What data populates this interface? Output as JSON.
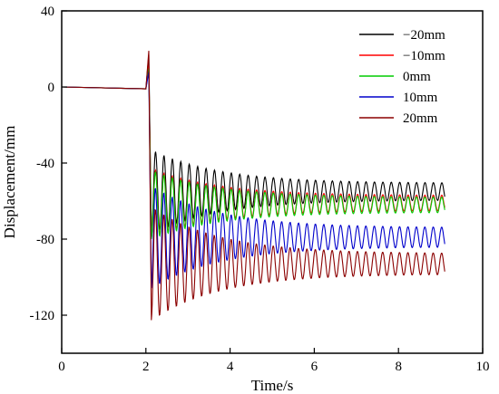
{
  "chart_data": {
    "type": "line",
    "title": "",
    "xlabel": "Time/s",
    "ylabel": "Displacement/mm",
    "xlim": [
      0,
      10
    ],
    "ylim": [
      -140,
      40
    ],
    "xticks": [
      0,
      2,
      4,
      6,
      8,
      10
    ],
    "yticks": [
      40,
      0,
      -40,
      -80,
      -120
    ],
    "grid": false,
    "legend_position": "top-right",
    "series": [
      {
        "name": "−20mm",
        "color": "#000000",
        "final": -55,
        "first_peak": 17,
        "first_trough": -75,
        "period": 0.2,
        "phase": 0.0
      },
      {
        "name": "−10mm",
        "color": "#ff0000",
        "final": -61,
        "first_peak": 12,
        "first_trough": -77,
        "period": 0.2,
        "phase": 0.02
      },
      {
        "name": "0mm",
        "color": "#00cc00",
        "final": -62,
        "first_peak": 10,
        "first_trough": -78,
        "period": 0.2,
        "phase": 0.04
      },
      {
        "name": "10mm",
        "color": "#0000cc",
        "final": -79,
        "first_peak": 8,
        "first_trough": -104,
        "period": 0.2,
        "phase": 0.06
      },
      {
        "name": "20mm",
        "color": "#8b0000",
        "final": -93,
        "first_peak": 19,
        "first_trough": -121,
        "period": 0.2,
        "phase": 0.08
      }
    ]
  }
}
